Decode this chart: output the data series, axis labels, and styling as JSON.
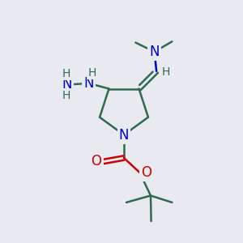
{
  "background_color": "#e8eaf0",
  "bond_color": "#2d6b50",
  "nitrogen_color": "#0000cc",
  "oxygen_color": "#cc0000",
  "text_color_N": "#0000cc",
  "text_color_O": "#cc0000",
  "text_color_C": "#2d6b50",
  "figsize": [
    3.0,
    3.0
  ],
  "dpi": 100,
  "xlim": [
    0,
    10
  ],
  "ylim": [
    0,
    10
  ]
}
